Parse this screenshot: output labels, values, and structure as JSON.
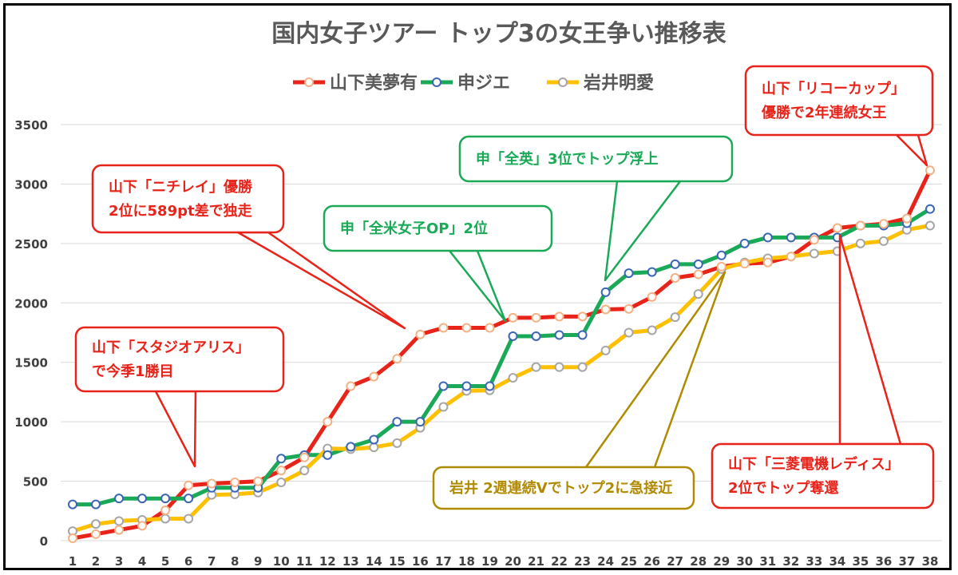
{
  "chart_data": {
    "type": "line",
    "title": "国内女子ツアー トップ3の女王争い推移表",
    "xlabel": "",
    "ylabel": "",
    "x": [
      1,
      2,
      3,
      4,
      5,
      6,
      7,
      8,
      9,
      10,
      11,
      12,
      13,
      14,
      15,
      16,
      17,
      18,
      19,
      20,
      21,
      22,
      23,
      24,
      25,
      26,
      27,
      28,
      29,
      30,
      31,
      32,
      33,
      34,
      35,
      36,
      37,
      38
    ],
    "ylim": [
      0,
      3500
    ],
    "yticks": [
      0,
      500,
      1000,
      1500,
      2000,
      2500,
      3000,
      3500
    ],
    "grid": "horizontal",
    "legend": "top-center",
    "series": [
      {
        "name": "山下美夢有",
        "color": "#e8231a",
        "marker": "#f4b183",
        "values": [
          20,
          55,
          90,
          125,
          255,
          465,
          480,
          490,
          500,
          590,
          700,
          1000,
          1300,
          1380,
          1530,
          1735,
          1790,
          1790,
          1790,
          1875,
          1875,
          1885,
          1885,
          1945,
          1950,
          2050,
          2210,
          2240,
          2305,
          2330,
          2340,
          2390,
          2530,
          2630,
          2650,
          2665,
          2710,
          3115
        ]
      },
      {
        "name": "申ジエ",
        "color": "#1aaa57",
        "marker": "#3a66b5",
        "values": [
          305,
          305,
          355,
          355,
          355,
          355,
          445,
          445,
          445,
          690,
          720,
          720,
          790,
          850,
          1000,
          1000,
          1300,
          1300,
          1300,
          1720,
          1720,
          1730,
          1730,
          2090,
          2250,
          2260,
          2325,
          2325,
          2400,
          2500,
          2550,
          2550,
          2550,
          2550,
          2650,
          2650,
          2670,
          2790
        ]
      },
      {
        "name": "岩井明愛",
        "color": "#ffc000",
        "marker": "#a5a5a5",
        "values": [
          80,
          140,
          165,
          175,
          185,
          185,
          385,
          390,
          405,
          490,
          590,
          775,
          770,
          785,
          820,
          950,
          1125,
          1260,
          1265,
          1370,
          1460,
          1460,
          1460,
          1600,
          1750,
          1770,
          1880,
          2075,
          2285,
          2340,
          2375,
          2390,
          2415,
          2435,
          2500,
          2520,
          2615,
          2650
        ]
      }
    ],
    "annotations": [
      {
        "lines": [
          "山下「スタジオアリス」",
          "で今季1勝目"
        ],
        "color": "#e8231a"
      },
      {
        "lines": [
          "山下「ニチレイ」優勝",
          "2位に589pt差で独走"
        ],
        "color": "#e8231a"
      },
      {
        "lines": [
          "申「全米女子OP」2位"
        ],
        "color": "#1aaa57"
      },
      {
        "lines": [
          "申「全英」3位でトップ浮上"
        ],
        "color": "#1aaa57"
      },
      {
        "lines": [
          "岩井 2週連続Vでトップ2に急接近"
        ],
        "color": "#b08a00"
      },
      {
        "lines": [
          "山下「リコーカップ」",
          "優勝で2年連続女王"
        ],
        "color": "#e8231a"
      },
      {
        "lines": [
          "山下「三菱電機レディス」",
          "2位でトップ奪還"
        ],
        "color": "#e8231a"
      }
    ]
  }
}
